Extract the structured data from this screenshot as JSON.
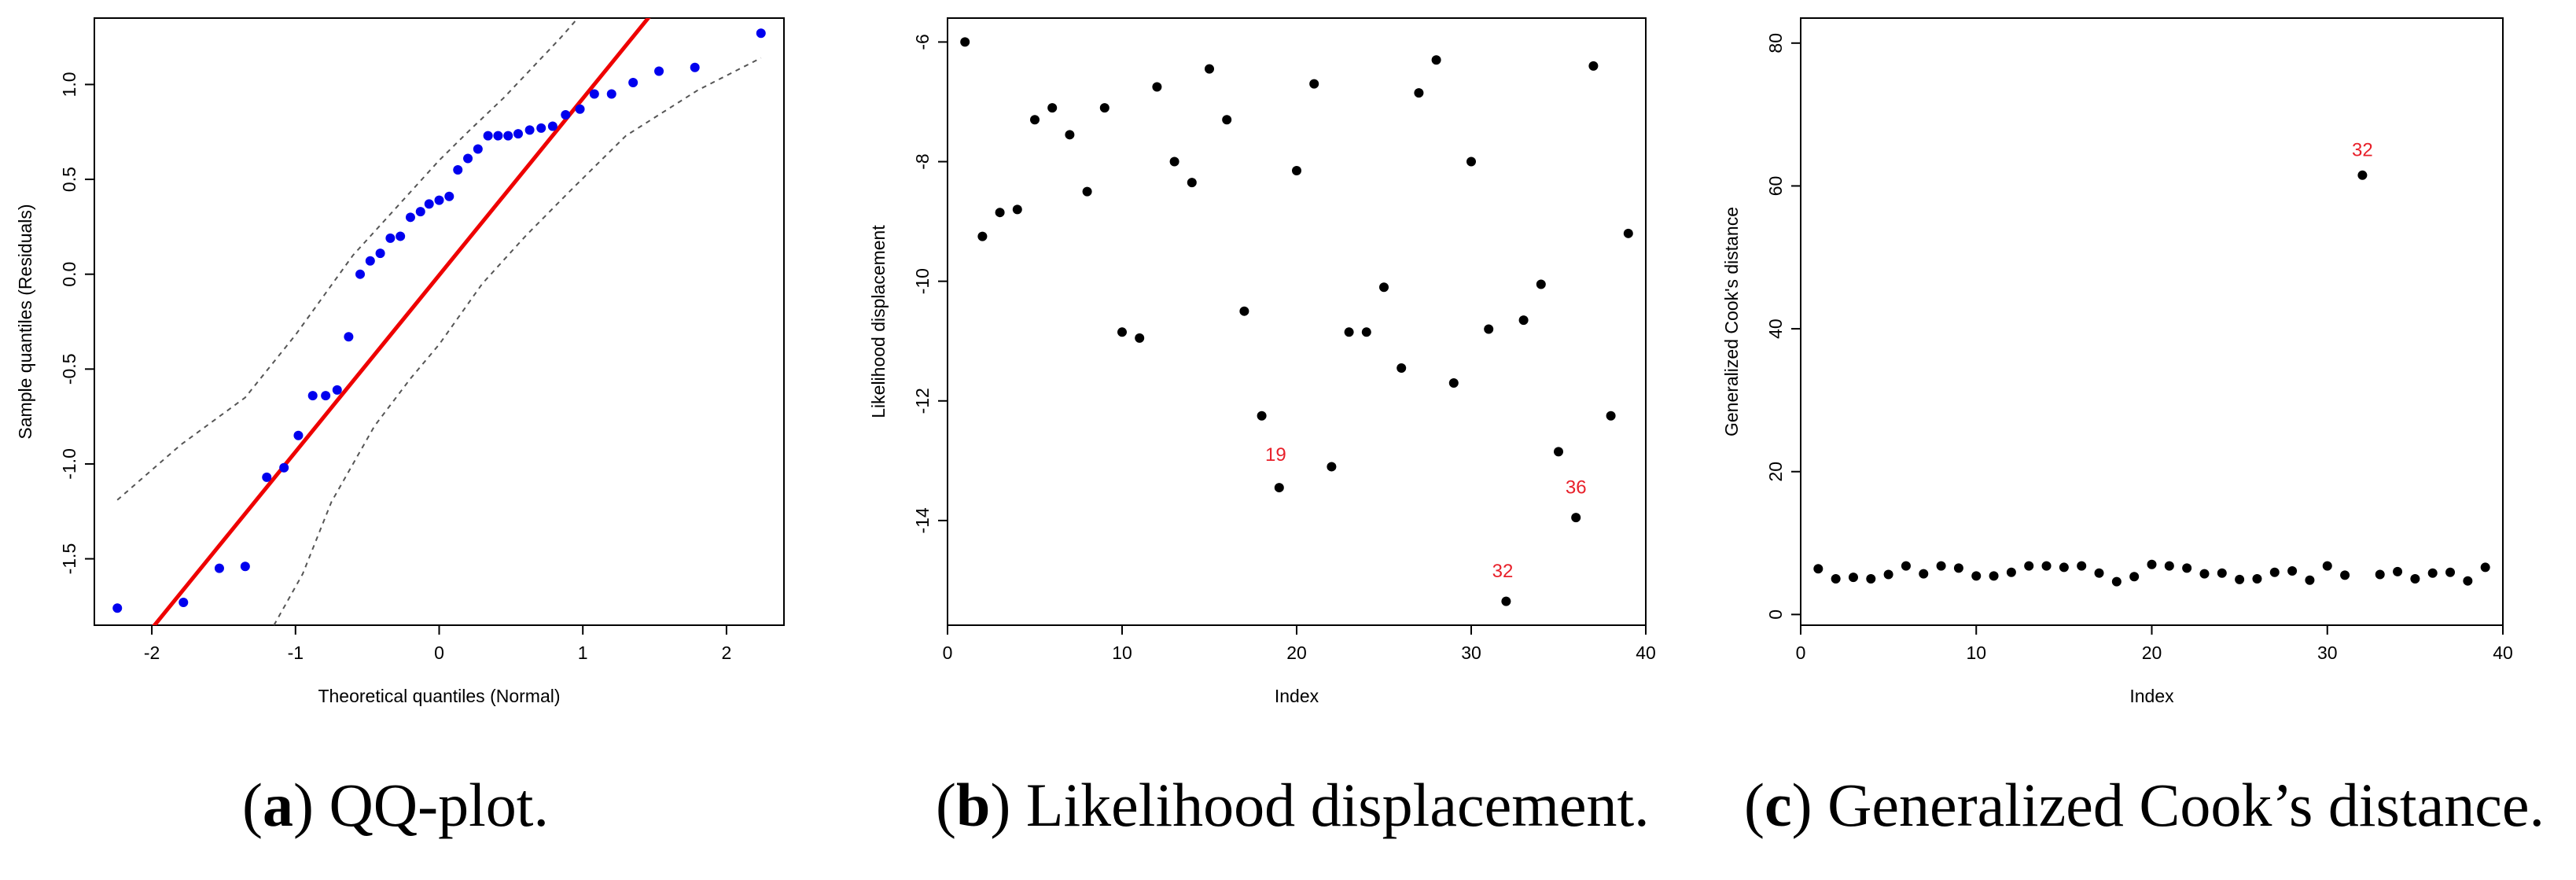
{
  "colors": {
    "qq_points": "#0000ee",
    "qq_line": "#ee0000",
    "band": "#555555",
    "points": "#000000",
    "outlier_labels": "#e8202a"
  },
  "chart_data": [
    {
      "type": "scatter",
      "xlabel": "Theoretical quantiles (Normal)",
      "ylabel": "Sample quantiles (Residuals)",
      "xlim": [
        -2.4,
        2.4
      ],
      "ylim": [
        -1.85,
        1.35
      ],
      "xticks": [
        "-2",
        "-1",
        "0",
        "1",
        "2"
      ],
      "yticks": [
        "-1.5",
        "-1.0",
        "-0.5",
        "0.0",
        "0.5",
        "1.0"
      ],
      "caption": {
        "letter": "a",
        "text": " QQ-plot."
      },
      "points": [
        [
          -2.24,
          -1.76
        ],
        [
          -1.78,
          -1.73
        ],
        [
          -1.53,
          -1.55
        ],
        [
          -1.35,
          -1.54
        ],
        [
          -1.2,
          -1.07
        ],
        [
          -1.08,
          -1.02
        ],
        [
          -0.98,
          -0.85
        ],
        [
          -0.88,
          -0.64
        ],
        [
          -0.79,
          -0.64
        ],
        [
          -0.71,
          -0.61
        ],
        [
          -0.63,
          -0.33
        ],
        [
          -0.55,
          0.0
        ],
        [
          -0.48,
          0.07
        ],
        [
          -0.41,
          0.11
        ],
        [
          -0.34,
          0.19
        ],
        [
          -0.27,
          0.2
        ],
        [
          -0.2,
          0.3
        ],
        [
          -0.13,
          0.33
        ],
        [
          -0.07,
          0.37
        ],
        [
          0.0,
          0.39
        ],
        [
          0.07,
          0.41
        ],
        [
          0.13,
          0.55
        ],
        [
          0.2,
          0.61
        ],
        [
          0.27,
          0.66
        ],
        [
          0.34,
          0.73
        ],
        [
          0.41,
          0.73
        ],
        [
          0.48,
          0.73
        ],
        [
          0.55,
          0.74
        ],
        [
          0.63,
          0.76
        ],
        [
          0.71,
          0.77
        ],
        [
          0.79,
          0.78
        ],
        [
          0.88,
          0.84
        ],
        [
          0.98,
          0.87
        ],
        [
          1.08,
          0.95
        ],
        [
          1.2,
          0.95
        ],
        [
          1.35,
          1.01
        ],
        [
          1.53,
          1.07
        ],
        [
          1.78,
          1.09
        ],
        [
          2.24,
          1.27
        ]
      ],
      "ref_line": [
        [
          -2.4,
          -2.24
        ],
        [
          2.4,
          2.23
        ]
      ],
      "band_upper": [
        [
          -2.24,
          -1.19
        ],
        [
          -1.8,
          -0.9
        ],
        [
          -1.35,
          -0.65
        ],
        [
          -1.0,
          -0.32
        ],
        [
          -0.6,
          0.1
        ],
        [
          -0.3,
          0.35
        ],
        [
          0.0,
          0.6
        ],
        [
          0.2,
          0.75
        ],
        [
          0.45,
          0.93
        ],
        [
          0.7,
          1.13
        ],
        [
          0.85,
          1.25
        ],
        [
          1.0,
          1.38
        ]
      ],
      "band_lower": [
        [
          -1.15,
          -1.85
        ],
        [
          -0.95,
          -1.58
        ],
        [
          -0.75,
          -1.2
        ],
        [
          -0.45,
          -0.8
        ],
        [
          -0.2,
          -0.55
        ],
        [
          0.0,
          -0.37
        ],
        [
          0.3,
          -0.05
        ],
        [
          0.6,
          0.2
        ],
        [
          0.9,
          0.43
        ],
        [
          1.3,
          0.73
        ],
        [
          1.8,
          0.97
        ],
        [
          2.24,
          1.14
        ]
      ]
    },
    {
      "type": "scatter",
      "xlabel": "Index",
      "ylabel": "Likelihood displacement",
      "xlim": [
        0,
        40
      ],
      "ylim": [
        -15.75,
        -5.6
      ],
      "xticks": [
        "0",
        "10",
        "20",
        "30",
        "40"
      ],
      "yticks": [
        "-14",
        "-12",
        "-10",
        "-8",
        "-6"
      ],
      "caption": {
        "letter": "b",
        "text": " Likelihood displacement."
      },
      "x": [
        1,
        2,
        3,
        4,
        5,
        6,
        7,
        8,
        9,
        10,
        11,
        12,
        13,
        14,
        15,
        16,
        17,
        18,
        19,
        20,
        21,
        22,
        23,
        24,
        25,
        26,
        27,
        28,
        29,
        30,
        31,
        32,
        33,
        34,
        35,
        36,
        37,
        38,
        39
      ],
      "y": [
        -6.0,
        -9.25,
        -8.85,
        -8.8,
        -7.3,
        -7.1,
        -7.55,
        -8.5,
        -7.1,
        -10.85,
        -10.95,
        -6.75,
        -8.0,
        -8.35,
        -6.45,
        -7.3,
        -10.5,
        -12.25,
        -13.45,
        -8.15,
        -6.7,
        -13.1,
        -10.85,
        -10.85,
        -10.1,
        -11.45,
        -6.85,
        -6.3,
        -11.7,
        -8.0,
        -10.8,
        -15.35,
        -10.65,
        -10.05,
        -12.85,
        -13.95,
        -6.4,
        -12.25,
        -9.2
      ],
      "labels": [
        {
          "text": "19",
          "index": 19,
          "at": [
            18.8,
            -13.0
          ]
        },
        {
          "text": "32",
          "index": 32,
          "at": [
            31.8,
            -14.95
          ]
        },
        {
          "text": "36",
          "index": 36,
          "at": [
            36.0,
            -13.55
          ]
        }
      ]
    },
    {
      "type": "scatter",
      "xlabel": "Index",
      "ylabel": "Generalized Cook's distance",
      "xlim": [
        0,
        40
      ],
      "ylim": [
        -1.5,
        83.5
      ],
      "xticks": [
        "0",
        "10",
        "20",
        "30",
        "40"
      ],
      "yticks": [
        "0",
        "20",
        "40",
        "60",
        "80"
      ],
      "caption": {
        "letter": "c",
        "text": " Generalized Cook’s distance."
      },
      "x": [
        1,
        2,
        3,
        4,
        5,
        6,
        7,
        8,
        9,
        10,
        11,
        12,
        13,
        14,
        15,
        16,
        17,
        18,
        19,
        20,
        21,
        22,
        23,
        24,
        25,
        26,
        27,
        28,
        29,
        30,
        31,
        32,
        33,
        34,
        35,
        36,
        37,
        38,
        39
      ],
      "y": [
        6.4,
        5.0,
        5.2,
        5.0,
        5.6,
        6.8,
        5.7,
        6.8,
        6.5,
        5.4,
        5.4,
        5.9,
        6.8,
        6.8,
        6.6,
        6.8,
        5.8,
        4.6,
        5.3,
        7.0,
        6.8,
        6.5,
        5.7,
        5.8,
        4.9,
        5.0,
        5.9,
        6.1,
        4.8,
        6.8,
        5.5,
        61.5,
        5.6,
        6.0,
        5.0,
        5.8,
        5.9,
        4.7,
        6.6
      ],
      "labels": [
        {
          "text": "32",
          "index": 32,
          "at": [
            32.0,
            64.2
          ]
        }
      ]
    }
  ]
}
